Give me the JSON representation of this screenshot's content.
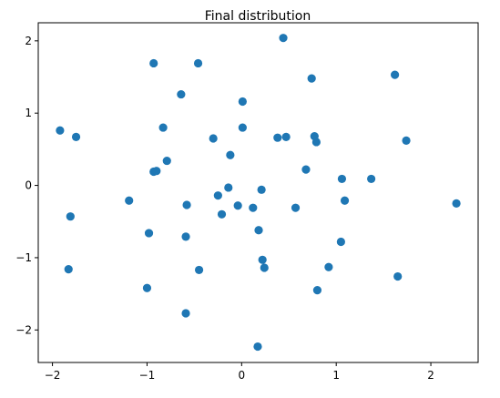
{
  "chart_data": {
    "type": "scatter",
    "title": "Final distribution",
    "xlim": [
      -2.15,
      2.5
    ],
    "ylim": [
      -2.45,
      2.25
    ],
    "x_ticks": [
      -2,
      -1,
      0,
      1,
      2
    ],
    "x_tick_labels": [
      "−2",
      "−1",
      "0",
      "1",
      "2"
    ],
    "y_ticks": [
      -2,
      -1,
      0,
      1,
      2
    ],
    "y_tick_labels": [
      "−2",
      "−1",
      "0",
      "1",
      "2"
    ],
    "grid": false,
    "colors": {
      "point": "#1f77b4",
      "axis": "#000000",
      "background": "#ffffff"
    },
    "series": [
      {
        "points": [
          {
            "x": -1.92,
            "y": 0.76
          },
          {
            "x": -1.75,
            "y": 0.67
          },
          {
            "x": -1.83,
            "y": -1.16
          },
          {
            "x": -1.81,
            "y": -0.43
          },
          {
            "x": -1.19,
            "y": -0.21
          },
          {
            "x": -1.0,
            "y": -1.42
          },
          {
            "x": -0.98,
            "y": -0.66
          },
          {
            "x": -0.93,
            "y": 1.69
          },
          {
            "x": -0.93,
            "y": 0.19
          },
          {
            "x": -0.9,
            "y": 0.2
          },
          {
            "x": -0.83,
            "y": 0.8
          },
          {
            "x": -0.79,
            "y": 0.34
          },
          {
            "x": -0.64,
            "y": 1.26
          },
          {
            "x": -0.58,
            "y": -0.27
          },
          {
            "x": -0.59,
            "y": -0.71
          },
          {
            "x": -0.59,
            "y": -1.77
          },
          {
            "x": -0.46,
            "y": 1.69
          },
          {
            "x": -0.45,
            "y": -1.17
          },
          {
            "x": -0.3,
            "y": 0.65
          },
          {
            "x": -0.25,
            "y": -0.14
          },
          {
            "x": -0.21,
            "y": -0.4
          },
          {
            "x": -0.14,
            "y": -0.03
          },
          {
            "x": -0.12,
            "y": 0.42
          },
          {
            "x": -0.04,
            "y": -0.28
          },
          {
            "x": 0.01,
            "y": 1.16
          },
          {
            "x": 0.01,
            "y": 0.8
          },
          {
            "x": 0.12,
            "y": -0.31
          },
          {
            "x": 0.18,
            "y": -0.62
          },
          {
            "x": 0.21,
            "y": -0.06
          },
          {
            "x": 0.22,
            "y": -1.03
          },
          {
            "x": 0.24,
            "y": -1.14
          },
          {
            "x": 0.17,
            "y": -2.23
          },
          {
            "x": 0.38,
            "y": 0.66
          },
          {
            "x": 0.44,
            "y": 2.04
          },
          {
            "x": 0.47,
            "y": 0.67
          },
          {
            "x": 0.57,
            "y": -0.31
          },
          {
            "x": 0.68,
            "y": 0.22
          },
          {
            "x": 0.74,
            "y": 1.48
          },
          {
            "x": 0.77,
            "y": 0.68
          },
          {
            "x": 0.79,
            "y": 0.6
          },
          {
            "x": 0.8,
            "y": -1.45
          },
          {
            "x": 0.92,
            "y": -1.13
          },
          {
            "x": 1.05,
            "y": -0.78
          },
          {
            "x": 1.06,
            "y": 0.09
          },
          {
            "x": 1.09,
            "y": -0.21
          },
          {
            "x": 1.37,
            "y": 0.09
          },
          {
            "x": 1.62,
            "y": 1.53
          },
          {
            "x": 1.65,
            "y": -1.26
          },
          {
            "x": 1.74,
            "y": 0.62
          },
          {
            "x": 2.27,
            "y": -0.25
          }
        ]
      }
    ]
  }
}
